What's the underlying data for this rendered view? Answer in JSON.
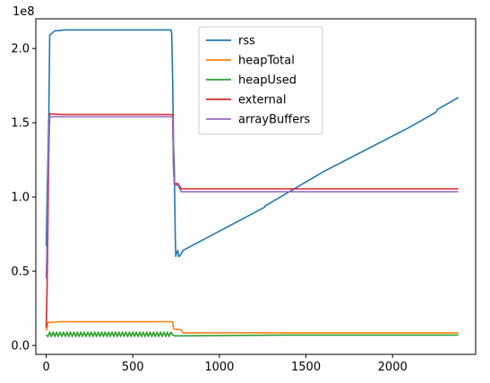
{
  "chart_data": {
    "type": "line",
    "title": "",
    "xlabel": "",
    "ylabel": "",
    "y_offset_label": "1e8",
    "xlim": [
      -60,
      2480
    ],
    "ylim": [
      -0.06,
      2.2
    ],
    "y_scale": 100000000,
    "xticks": [
      0,
      500,
      1000,
      1500,
      2000
    ],
    "xtick_labels": [
      "0",
      "500",
      "1000",
      "1500",
      "2000"
    ],
    "yticks": [
      0.0,
      0.5,
      1.0,
      1.5,
      2.0
    ],
    "ytick_labels": [
      "0.0",
      "0.5",
      "1.0",
      "1.5",
      "2.0"
    ],
    "grid": false,
    "legend_position": "upper center",
    "series": [
      {
        "name": "rss",
        "color": "#1f77b4",
        "x": [
          0,
          5,
          10,
          15,
          20,
          30,
          50,
          70,
          100,
          300,
          500,
          720,
          725,
          730,
          735,
          740,
          745,
          748,
          752,
          760,
          765,
          770,
          780,
          790,
          1000,
          1260,
          1265,
          1600,
          1650,
          2100,
          2250,
          2260,
          2380
        ],
        "y": [
          0.67,
          1.0,
          1.25,
          1.55,
          2.09,
          2.1,
          2.12,
          2.12,
          2.125,
          2.125,
          2.125,
          2.125,
          2.1,
          1.8,
          1.35,
          1.2,
          0.75,
          0.6,
          0.62,
          0.64,
          0.6,
          0.6,
          0.62,
          0.64,
          0.77,
          0.93,
          0.94,
          1.17,
          1.2,
          1.47,
          1.57,
          1.59,
          1.67
        ]
      },
      {
        "name": "heapTotal",
        "color": "#ff7f0e",
        "x": [
          0,
          5,
          10,
          15,
          20,
          80,
          100,
          730,
          735,
          740,
          780,
          790,
          2380
        ],
        "y": [
          0.1,
          0.12,
          0.155,
          0.155,
          0.155,
          0.16,
          0.16,
          0.16,
          0.115,
          0.11,
          0.105,
          0.085,
          0.085
        ]
      },
      {
        "name": "heapUsed",
        "color": "#2ca02c",
        "x": [
          0,
          10,
          20,
          30,
          40,
          50,
          60,
          70,
          80,
          90,
          100,
          110,
          120,
          130,
          140,
          150,
          160,
          170,
          180,
          190,
          200,
          210,
          220,
          230,
          240,
          250,
          260,
          270,
          280,
          290,
          300,
          310,
          320,
          330,
          340,
          350,
          360,
          370,
          380,
          390,
          400,
          410,
          420,
          430,
          440,
          450,
          460,
          470,
          480,
          490,
          500,
          510,
          520,
          530,
          540,
          550,
          560,
          570,
          580,
          590,
          600,
          610,
          620,
          630,
          640,
          650,
          660,
          670,
          680,
          690,
          700,
          710,
          720,
          730,
          740,
          780,
          1400,
          2380
        ],
        "y": [
          0.07,
          0.06,
          0.09,
          0.06,
          0.09,
          0.06,
          0.09,
          0.06,
          0.09,
          0.06,
          0.09,
          0.06,
          0.09,
          0.06,
          0.09,
          0.06,
          0.09,
          0.06,
          0.09,
          0.06,
          0.09,
          0.06,
          0.09,
          0.06,
          0.09,
          0.06,
          0.09,
          0.06,
          0.09,
          0.06,
          0.09,
          0.06,
          0.09,
          0.06,
          0.09,
          0.06,
          0.09,
          0.06,
          0.09,
          0.06,
          0.09,
          0.06,
          0.09,
          0.06,
          0.09,
          0.06,
          0.09,
          0.06,
          0.09,
          0.06,
          0.09,
          0.06,
          0.09,
          0.06,
          0.09,
          0.06,
          0.09,
          0.06,
          0.09,
          0.06,
          0.09,
          0.06,
          0.09,
          0.06,
          0.09,
          0.06,
          0.09,
          0.06,
          0.09,
          0.06,
          0.09,
          0.06,
          0.09,
          0.07,
          0.065,
          0.065,
          0.07,
          0.07
        ]
      },
      {
        "name": "external",
        "color": "#d62728",
        "x": [
          0,
          5,
          10,
          15,
          20,
          100,
          730,
          735,
          740,
          760,
          780,
          2380
        ],
        "y": [
          0.12,
          0.4,
          0.8,
          1.3,
          1.56,
          1.555,
          1.555,
          1.2,
          1.09,
          1.09,
          1.055,
          1.055
        ]
      },
      {
        "name": "arrayBuffers",
        "color": "#9467bd",
        "x": [
          0,
          5,
          10,
          15,
          20,
          100,
          730,
          735,
          740,
          760,
          780,
          2380
        ],
        "y": [
          0.45,
          0.7,
          1.05,
          1.35,
          1.54,
          1.54,
          1.54,
          1.2,
          1.08,
          1.08,
          1.035,
          1.035
        ]
      }
    ]
  }
}
